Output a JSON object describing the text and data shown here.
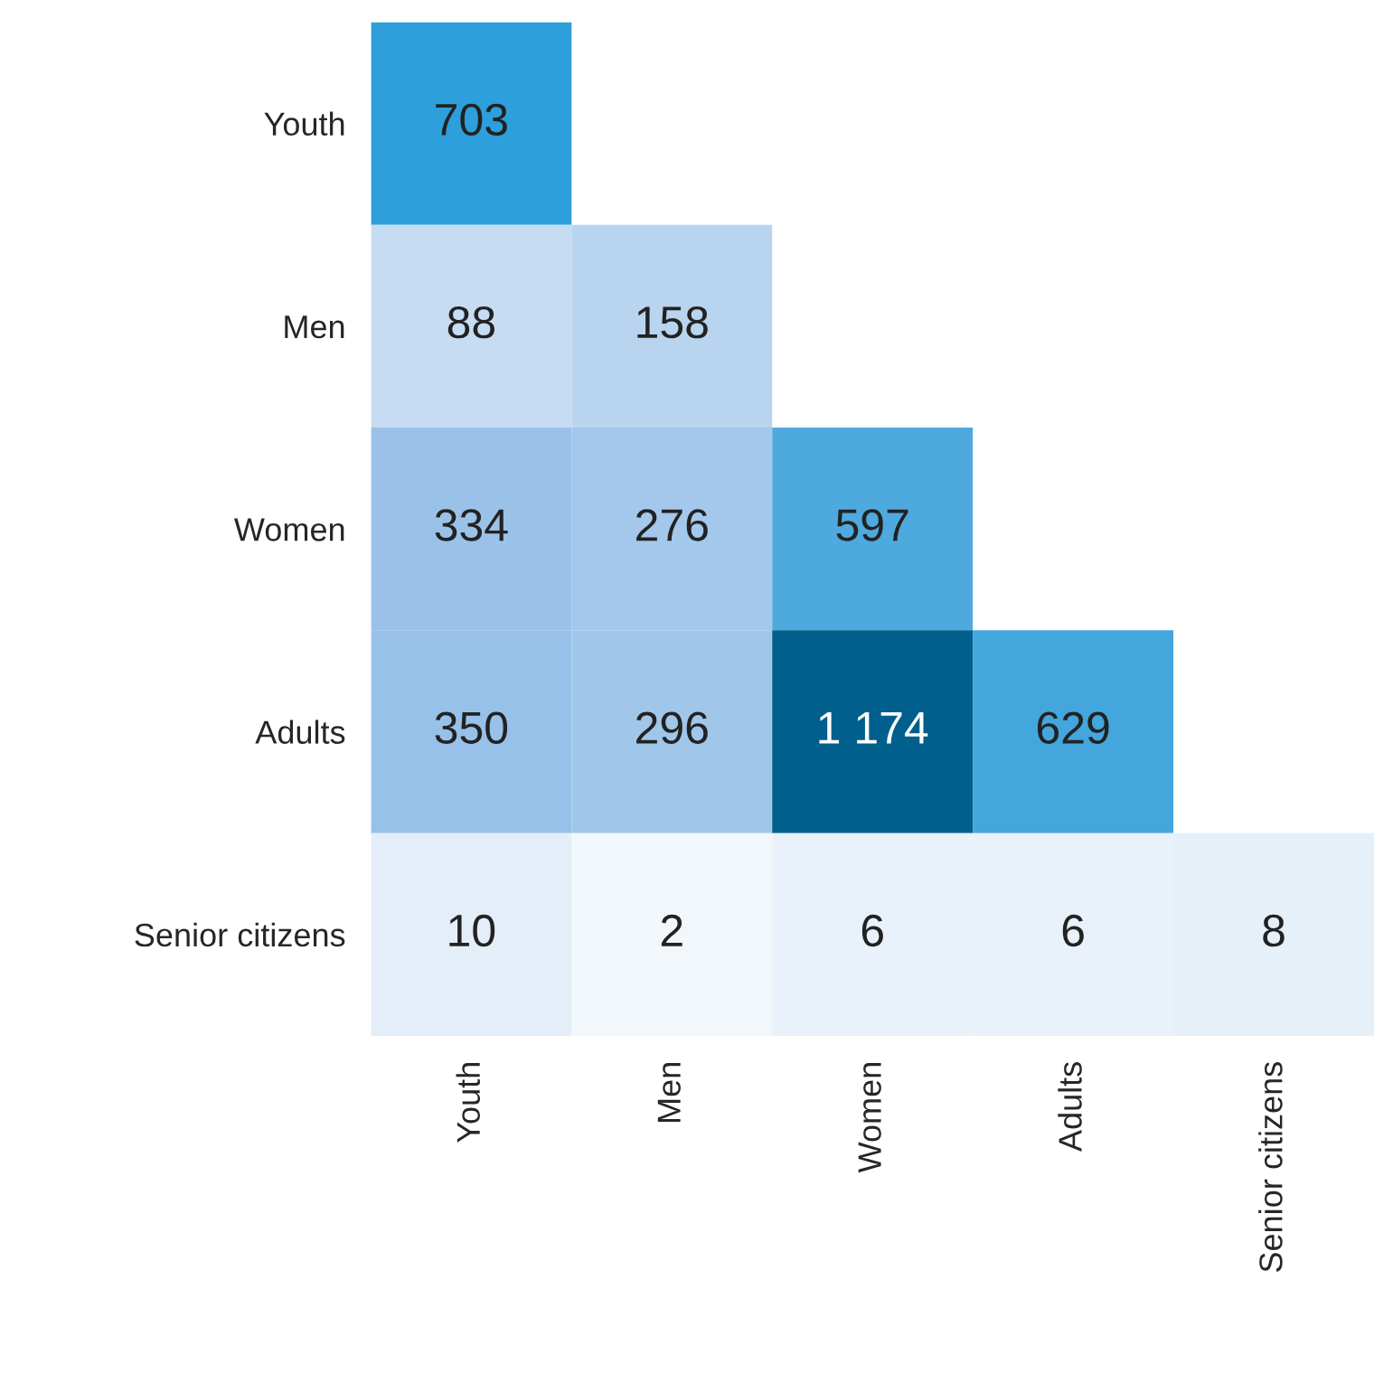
{
  "chart_data": {
    "type": "heatmap",
    "categories": [
      "Youth",
      "Men",
      "Women",
      "Adults",
      "Senior citizens"
    ],
    "y_categories": [
      "Youth",
      "Men",
      "Women",
      "Adults",
      "Senior citizens"
    ],
    "cells": [
      [
        703,
        null,
        null,
        null,
        null
      ],
      [
        88,
        158,
        null,
        null,
        null
      ],
      [
        334,
        276,
        597,
        null,
        null
      ],
      [
        350,
        296,
        1174,
        629,
        null
      ],
      [
        10,
        2,
        6,
        6,
        8
      ]
    ],
    "cell_labels": [
      [
        "703",
        null,
        null,
        null,
        null
      ],
      [
        "88",
        "158",
        null,
        null,
        null
      ],
      [
        "334",
        "276",
        "597",
        null,
        null
      ],
      [
        "350",
        "296",
        "1 174",
        "629",
        null
      ],
      [
        "10",
        "2",
        "6",
        "6",
        "8"
      ]
    ]
  }
}
